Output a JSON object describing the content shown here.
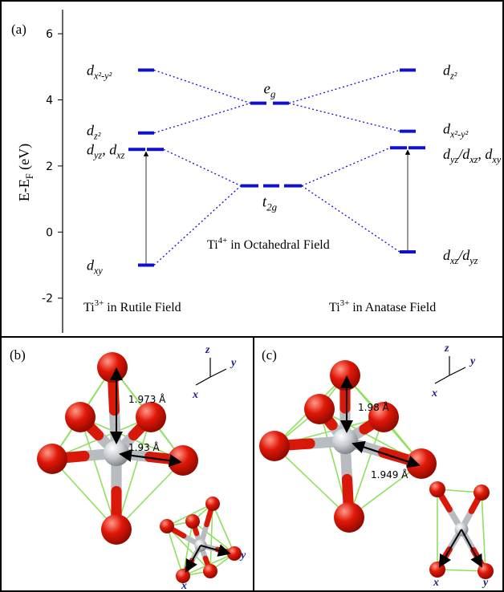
{
  "panel_a": {
    "label": "(a)",
    "y_label": [
      "E-E",
      "F",
      " (eV)"
    ],
    "ylim": [
      -3.05,
      6.73
    ],
    "yticks": [
      -2,
      0,
      2,
      4,
      6
    ],
    "rutile": {
      "caption": [
        "Ti",
        "3+",
        " in Rutile Field"
      ],
      "levels": [
        {
          "energy": 4.9,
          "label": [
            "d",
            "x²-y²"
          ]
        },
        {
          "energy": 3.0,
          "label": [
            "d",
            "z²"
          ]
        },
        {
          "energy": 2.5,
          "label": [
            "d",
            "yz",
            ", d",
            "xz"
          ]
        },
        {
          "energy": -1.0,
          "label": [
            "d",
            "xy"
          ]
        }
      ]
    },
    "octahedral": {
      "caption": [
        "Ti",
        "4+",
        " in Octahedral Field"
      ],
      "levels": [
        {
          "energy": 3.9,
          "label": [
            "e",
            "g"
          ]
        },
        {
          "energy": 1.4,
          "label": [
            "t",
            "2g"
          ]
        }
      ]
    },
    "anatase": {
      "caption": [
        "Ti",
        "3+",
        " in Anatase Field"
      ],
      "levels": [
        {
          "energy": 4.9,
          "label": [
            "d",
            "z²"
          ]
        },
        {
          "energy": 3.05,
          "label": [
            "d",
            "x²-y²"
          ]
        },
        {
          "energy": 2.55,
          "label": [
            "d",
            "yz",
            "/d",
            "xz",
            ", d",
            "xy"
          ]
        },
        {
          "energy": -0.6,
          "label": [
            "d",
            "xz",
            "/d",
            "yz"
          ]
        }
      ]
    }
  },
  "panel_b": {
    "label": "(b)",
    "bond_lengths": [
      "1.973 Å",
      "1.93 Å"
    ],
    "axes": [
      "z",
      "y",
      "x"
    ],
    "small_axes": [
      "x",
      "y"
    ]
  },
  "panel_c": {
    "label": "(c)",
    "bond_lengths": [
      "1.98 Å",
      "1.949 Å"
    ],
    "axes": [
      "z",
      "y",
      "x"
    ],
    "small_axes": [
      "x",
      "y"
    ]
  }
}
